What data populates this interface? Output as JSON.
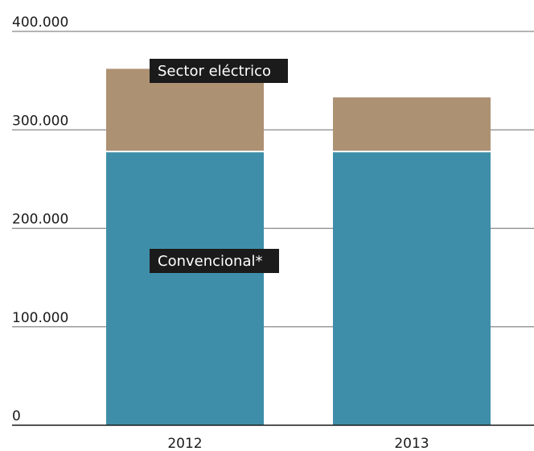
{
  "chart_data": {
    "type": "bar",
    "stacked": true,
    "categories": [
      "2012",
      "2013"
    ],
    "series": [
      {
        "name": "Convencional*",
        "values": [
          278000,
          278000
        ],
        "color": "#3e8ea9"
      },
      {
        "name": "Sector eléctrico",
        "values": [
          84000,
          55000
        ],
        "color": "#ad9173"
      }
    ],
    "yticks": [
      "0",
      "100.000",
      "200.000",
      "300.000",
      "400.000"
    ],
    "ylim": [
      0,
      400000
    ],
    "grid": true,
    "legend": "inline labels on first bar",
    "axis_color": "#1a1a1a",
    "grid_color": "#888888"
  }
}
